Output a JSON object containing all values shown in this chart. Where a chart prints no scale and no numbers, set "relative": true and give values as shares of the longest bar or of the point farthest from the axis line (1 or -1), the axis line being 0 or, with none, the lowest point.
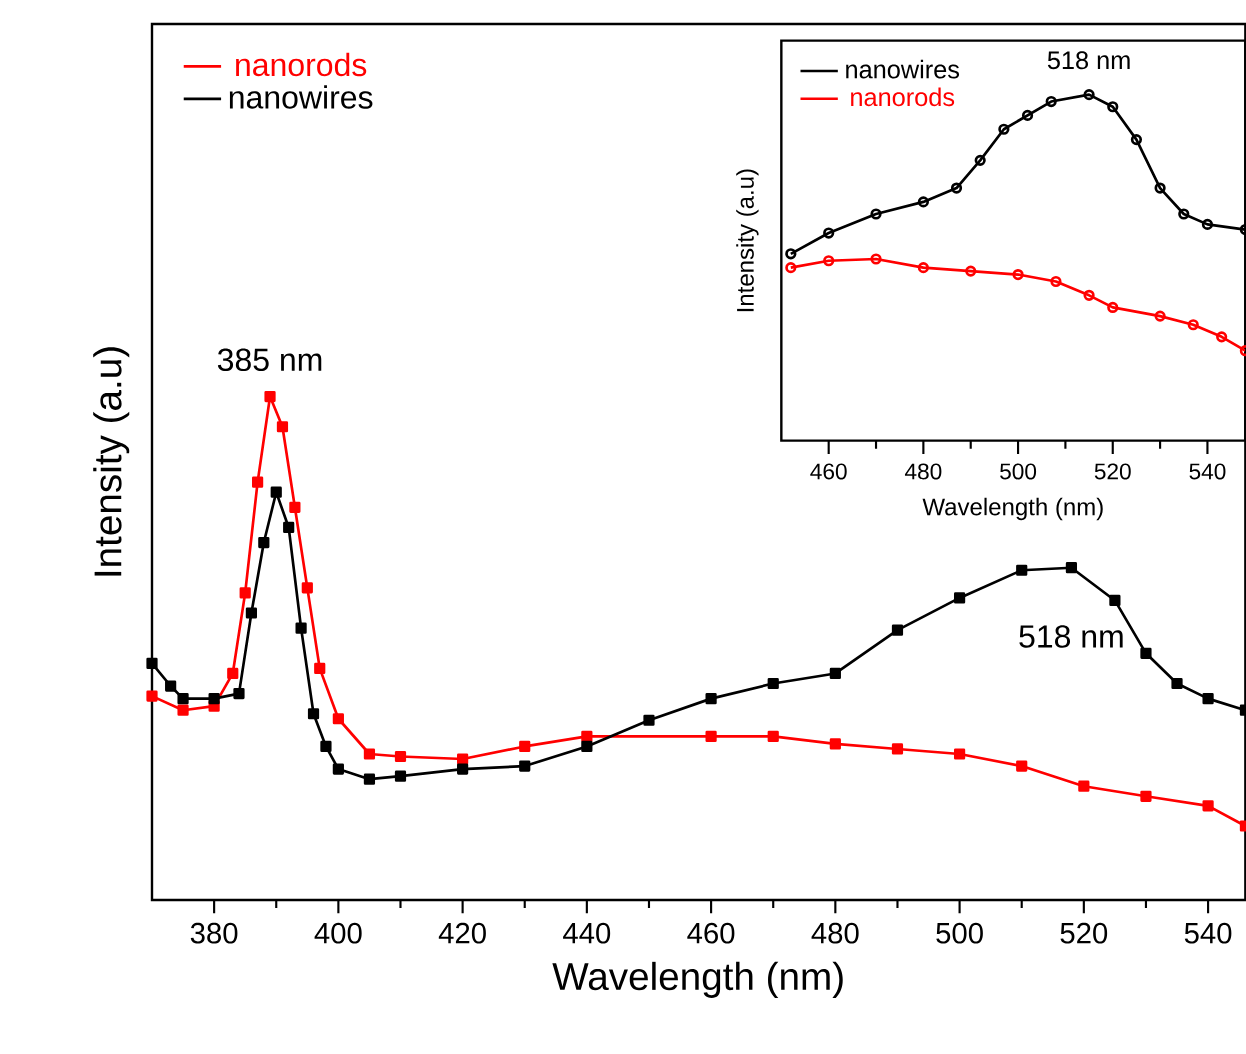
{
  "chart_data": [
    {
      "type": "line",
      "xlabel": "Wavelength (nm)",
      "ylabel": "Intensity (a.u)",
      "relative": true,
      "xlim": [
        370,
        546
      ],
      "xticks": [
        380,
        400,
        420,
        440,
        460,
        480,
        500,
        520,
        540
      ],
      "legend": "top left",
      "marker": "square",
      "line_style": "solid",
      "grid": false,
      "annotations": [
        {
          "text": "385 nm",
          "x": 389,
          "y": 1.0
        },
        {
          "text": "518 nm",
          "x": 518,
          "y": 0.66
        }
      ],
      "series": [
        {
          "name": "nanorods",
          "color": "#ff0000",
          "x": [
            370,
            375,
            380,
            383,
            385,
            387,
            389,
            391,
            393,
            395,
            397,
            400,
            405,
            410,
            420,
            430,
            440,
            460,
            470,
            480,
            490,
            500,
            510,
            520,
            530,
            540,
            546
          ],
          "values": [
            0.405,
            0.377,
            0.385,
            0.45,
            0.61,
            0.83,
            1.0,
            0.94,
            0.78,
            0.62,
            0.46,
            0.36,
            0.29,
            0.285,
            0.28,
            0.305,
            0.325,
            0.325,
            0.325,
            0.31,
            0.3,
            0.29,
            0.266,
            0.226,
            0.206,
            0.187,
            0.147
          ]
        },
        {
          "name": "nanowires",
          "color": "#000000",
          "x": [
            370,
            373,
            375,
            380,
            384,
            386,
            388,
            390,
            392,
            394,
            396,
            398,
            400,
            405,
            410,
            420,
            430,
            440,
            450,
            460,
            470,
            480,
            490,
            500,
            510,
            518,
            525,
            530,
            535,
            540,
            546
          ],
          "values": [
            0.47,
            0.425,
            0.4,
            0.4,
            0.41,
            0.57,
            0.71,
            0.81,
            0.74,
            0.54,
            0.37,
            0.305,
            0.26,
            0.24,
            0.246,
            0.26,
            0.266,
            0.305,
            0.357,
            0.4,
            0.43,
            0.45,
            0.536,
            0.6,
            0.655,
            0.66,
            0.595,
            0.49,
            0.43,
            0.4,
            0.377
          ]
        }
      ]
    },
    {
      "type": "line",
      "xlabel": "Wavelength (nm)",
      "ylabel": "Intensity (a.u)",
      "relative": true,
      "xlim": [
        450,
        548
      ],
      "xticks": [
        460,
        480,
        500,
        520,
        540
      ],
      "legend": "top left",
      "marker": "circle",
      "line_style": "solid",
      "grid": false,
      "annotations": [
        {
          "text": "518 nm",
          "x": 515,
          "y": 1.0
        }
      ],
      "series": [
        {
          "name": "nanowires",
          "color": "#000000",
          "x": [
            452,
            460,
            470,
            480,
            487,
            492,
            497,
            502,
            507,
            515,
            520,
            525,
            530,
            535,
            540,
            548
          ],
          "values": [
            0.54,
            0.6,
            0.655,
            0.69,
            0.73,
            0.81,
            0.9,
            0.94,
            0.98,
            1.0,
            0.965,
            0.87,
            0.73,
            0.655,
            0.625,
            0.61
          ]
        },
        {
          "name": "nanorods",
          "color": "#ff0000",
          "x": [
            452,
            460,
            470,
            480,
            490,
            500,
            508,
            515,
            520,
            530,
            537,
            543,
            548
          ],
          "values": [
            0.5,
            0.52,
            0.525,
            0.5,
            0.49,
            0.48,
            0.46,
            0.42,
            0.385,
            0.36,
            0.335,
            0.3,
            0.26
          ]
        }
      ]
    }
  ]
}
